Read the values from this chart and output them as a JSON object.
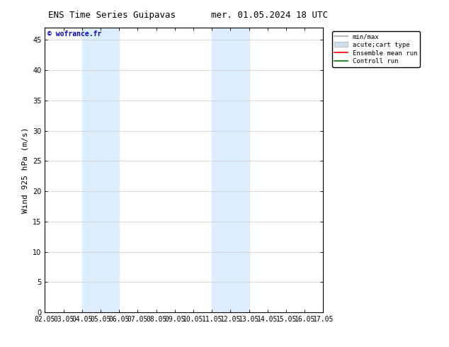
{
  "title_left": "ENS Time Series Guipavas",
  "title_right": "mer. 01.05.2024 18 UTC",
  "ylabel_full": "Wind 925 hPa (m/s)",
  "watermark": "© wofrance.fr",
  "watermark_color": "#0000cc",
  "ylim": [
    0,
    47
  ],
  "yticks": [
    0,
    5,
    10,
    15,
    20,
    25,
    30,
    35,
    40,
    45
  ],
  "xtick_labels": [
    "02.05",
    "03.05",
    "04.05",
    "05.05",
    "06.05",
    "07.05",
    "08.05",
    "09.05",
    "10.05",
    "11.05",
    "12.05",
    "13.05",
    "14.05",
    "15.05",
    "16.05",
    "17.05"
  ],
  "xtick_positions": [
    0,
    1,
    2,
    3,
    4,
    5,
    6,
    7,
    8,
    9,
    10,
    11,
    12,
    13,
    14,
    15
  ],
  "shade_bands": [
    {
      "x_start": 2,
      "x_end": 4,
      "color": "#ddeeff"
    },
    {
      "x_start": 9,
      "x_end": 11,
      "color": "#ddeeff"
    }
  ],
  "bg_color": "#ffffff",
  "legend_entries": [
    {
      "label": "min/max",
      "color": "#aaaaaa",
      "type": "line"
    },
    {
      "label": "acute;cart type",
      "color": "#cce0f0",
      "type": "patch"
    },
    {
      "label": "Ensemble mean run",
      "color": "#ff0000",
      "type": "line"
    },
    {
      "label": "Controll run",
      "color": "#008000",
      "type": "line"
    }
  ],
  "tick_fontsize": 7,
  "label_fontsize": 8,
  "title_fontsize": 9,
  "border_color": "#000000"
}
